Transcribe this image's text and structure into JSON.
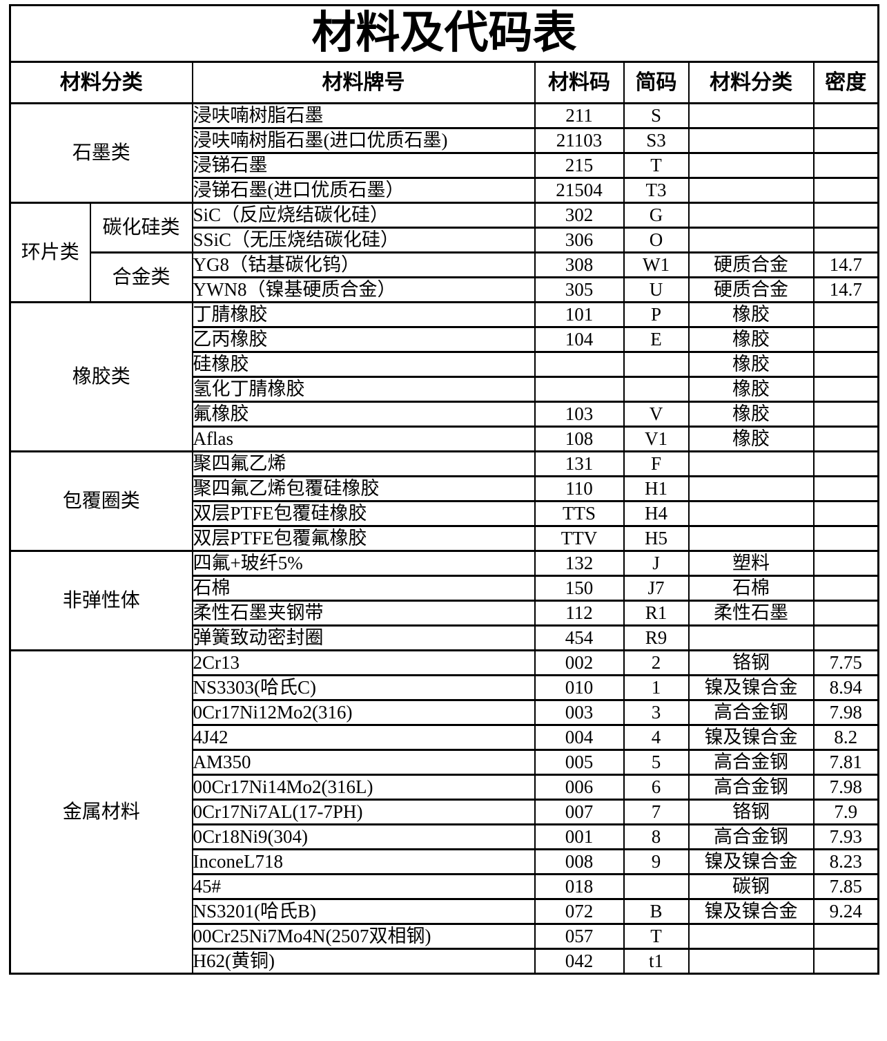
{
  "title": "材料及代码表",
  "headers": [
    "材料分类",
    "材料牌号",
    "材料码",
    "简码",
    "材料分类",
    "密度"
  ],
  "groups": [
    {
      "label": "石墨类",
      "start": 0,
      "count": 4
    },
    {
      "label": "环片类",
      "start": 4,
      "count": 4,
      "subgroups": [
        {
          "label": "碳化硅类",
          "start": 4,
          "count": 2
        },
        {
          "label": "合金类",
          "start": 6,
          "count": 2
        }
      ]
    },
    {
      "label": "橡胶类",
      "start": 8,
      "count": 6
    },
    {
      "label": "包覆圈类",
      "start": 14,
      "count": 4
    },
    {
      "label": "非弹性体",
      "start": 18,
      "count": 4
    },
    {
      "label": "金属材料",
      "start": 22,
      "count": 13
    }
  ],
  "rows": [
    [
      "浸呋喃树脂石墨",
      "211",
      "S",
      "",
      ""
    ],
    [
      "浸呋喃树脂石墨(进口优质石墨)",
      "21103",
      "S3",
      "",
      ""
    ],
    [
      "浸锑石墨",
      "215",
      "T",
      "",
      ""
    ],
    [
      "浸锑石墨(进口优质石墨）",
      "21504",
      "T3",
      "",
      ""
    ],
    [
      "SiC（反应烧结碳化硅）",
      "302",
      "G",
      "",
      ""
    ],
    [
      "SSiC（无压烧结碳化硅）",
      "306",
      "O",
      "",
      ""
    ],
    [
      "YG8（钴基碳化钨）",
      "308",
      "W1",
      "硬质合金",
      "14.7"
    ],
    [
      "YWN8（镍基硬质合金）",
      "305",
      "U",
      "硬质合金",
      "14.7"
    ],
    [
      "丁腈橡胶",
      "101",
      "P",
      "橡胶",
      ""
    ],
    [
      "乙丙橡胶",
      "104",
      "E",
      "橡胶",
      ""
    ],
    [
      "硅橡胶",
      "",
      "",
      "橡胶",
      ""
    ],
    [
      "氢化丁腈橡胶",
      "",
      "",
      "橡胶",
      ""
    ],
    [
      "氟橡胶",
      "103",
      "V",
      "橡胶",
      ""
    ],
    [
      "Aflas",
      "108",
      "V1",
      "橡胶",
      ""
    ],
    [
      "聚四氟乙烯",
      "131",
      "F",
      "",
      ""
    ],
    [
      "聚四氟乙烯包覆硅橡胶",
      "110",
      "H1",
      "",
      ""
    ],
    [
      "双层PTFE包覆硅橡胶",
      "TTS",
      "H4",
      "",
      ""
    ],
    [
      "双层PTFE包覆氟橡胶",
      "TTV",
      "H5",
      "",
      ""
    ],
    [
      "四氟+玻纤5%",
      "132",
      "J",
      "塑料",
      ""
    ],
    [
      "石棉",
      "150",
      "J7",
      "石棉",
      ""
    ],
    [
      "柔性石墨夹钢带",
      "112",
      "R1",
      "柔性石墨",
      ""
    ],
    [
      "弹簧致动密封圈",
      "454",
      "R9",
      "",
      ""
    ],
    [
      "2Cr13",
      "002",
      "2",
      "铬钢",
      "7.75"
    ],
    [
      "NS3303(哈氏C)",
      "010",
      "1",
      "镍及镍合金",
      "8.94"
    ],
    [
      "0Cr17Ni12Mo2(316)",
      "003",
      "3",
      "高合金钢",
      "7.98"
    ],
    [
      "4J42",
      "004",
      "4",
      "镍及镍合金",
      "8.2"
    ],
    [
      "AM350",
      "005",
      "5",
      "高合金钢",
      "7.81"
    ],
    [
      "00Cr17Ni14Mo2(316L)",
      "006",
      "6",
      "高合金钢",
      "7.98"
    ],
    [
      "0Cr17Ni7AL(17-7PH)",
      "007",
      "7",
      "铬钢",
      "7.9"
    ],
    [
      "0Cr18Ni9(304)",
      "001",
      "8",
      "高合金钢",
      "7.93"
    ],
    [
      "InconeL718",
      "008",
      "9",
      "镍及镍合金",
      "8.23"
    ],
    [
      "45#",
      "018",
      "",
      "碳钢",
      "7.85"
    ],
    [
      "NS3201(哈氏B)",
      "072",
      "B",
      "镍及镍合金",
      "9.24"
    ],
    [
      "00Cr25Ni7Mo4N(2507双相钢)",
      "057",
      "T",
      "",
      ""
    ],
    [
      "H62(黄铜)",
      "042",
      "t1",
      "",
      ""
    ]
  ]
}
